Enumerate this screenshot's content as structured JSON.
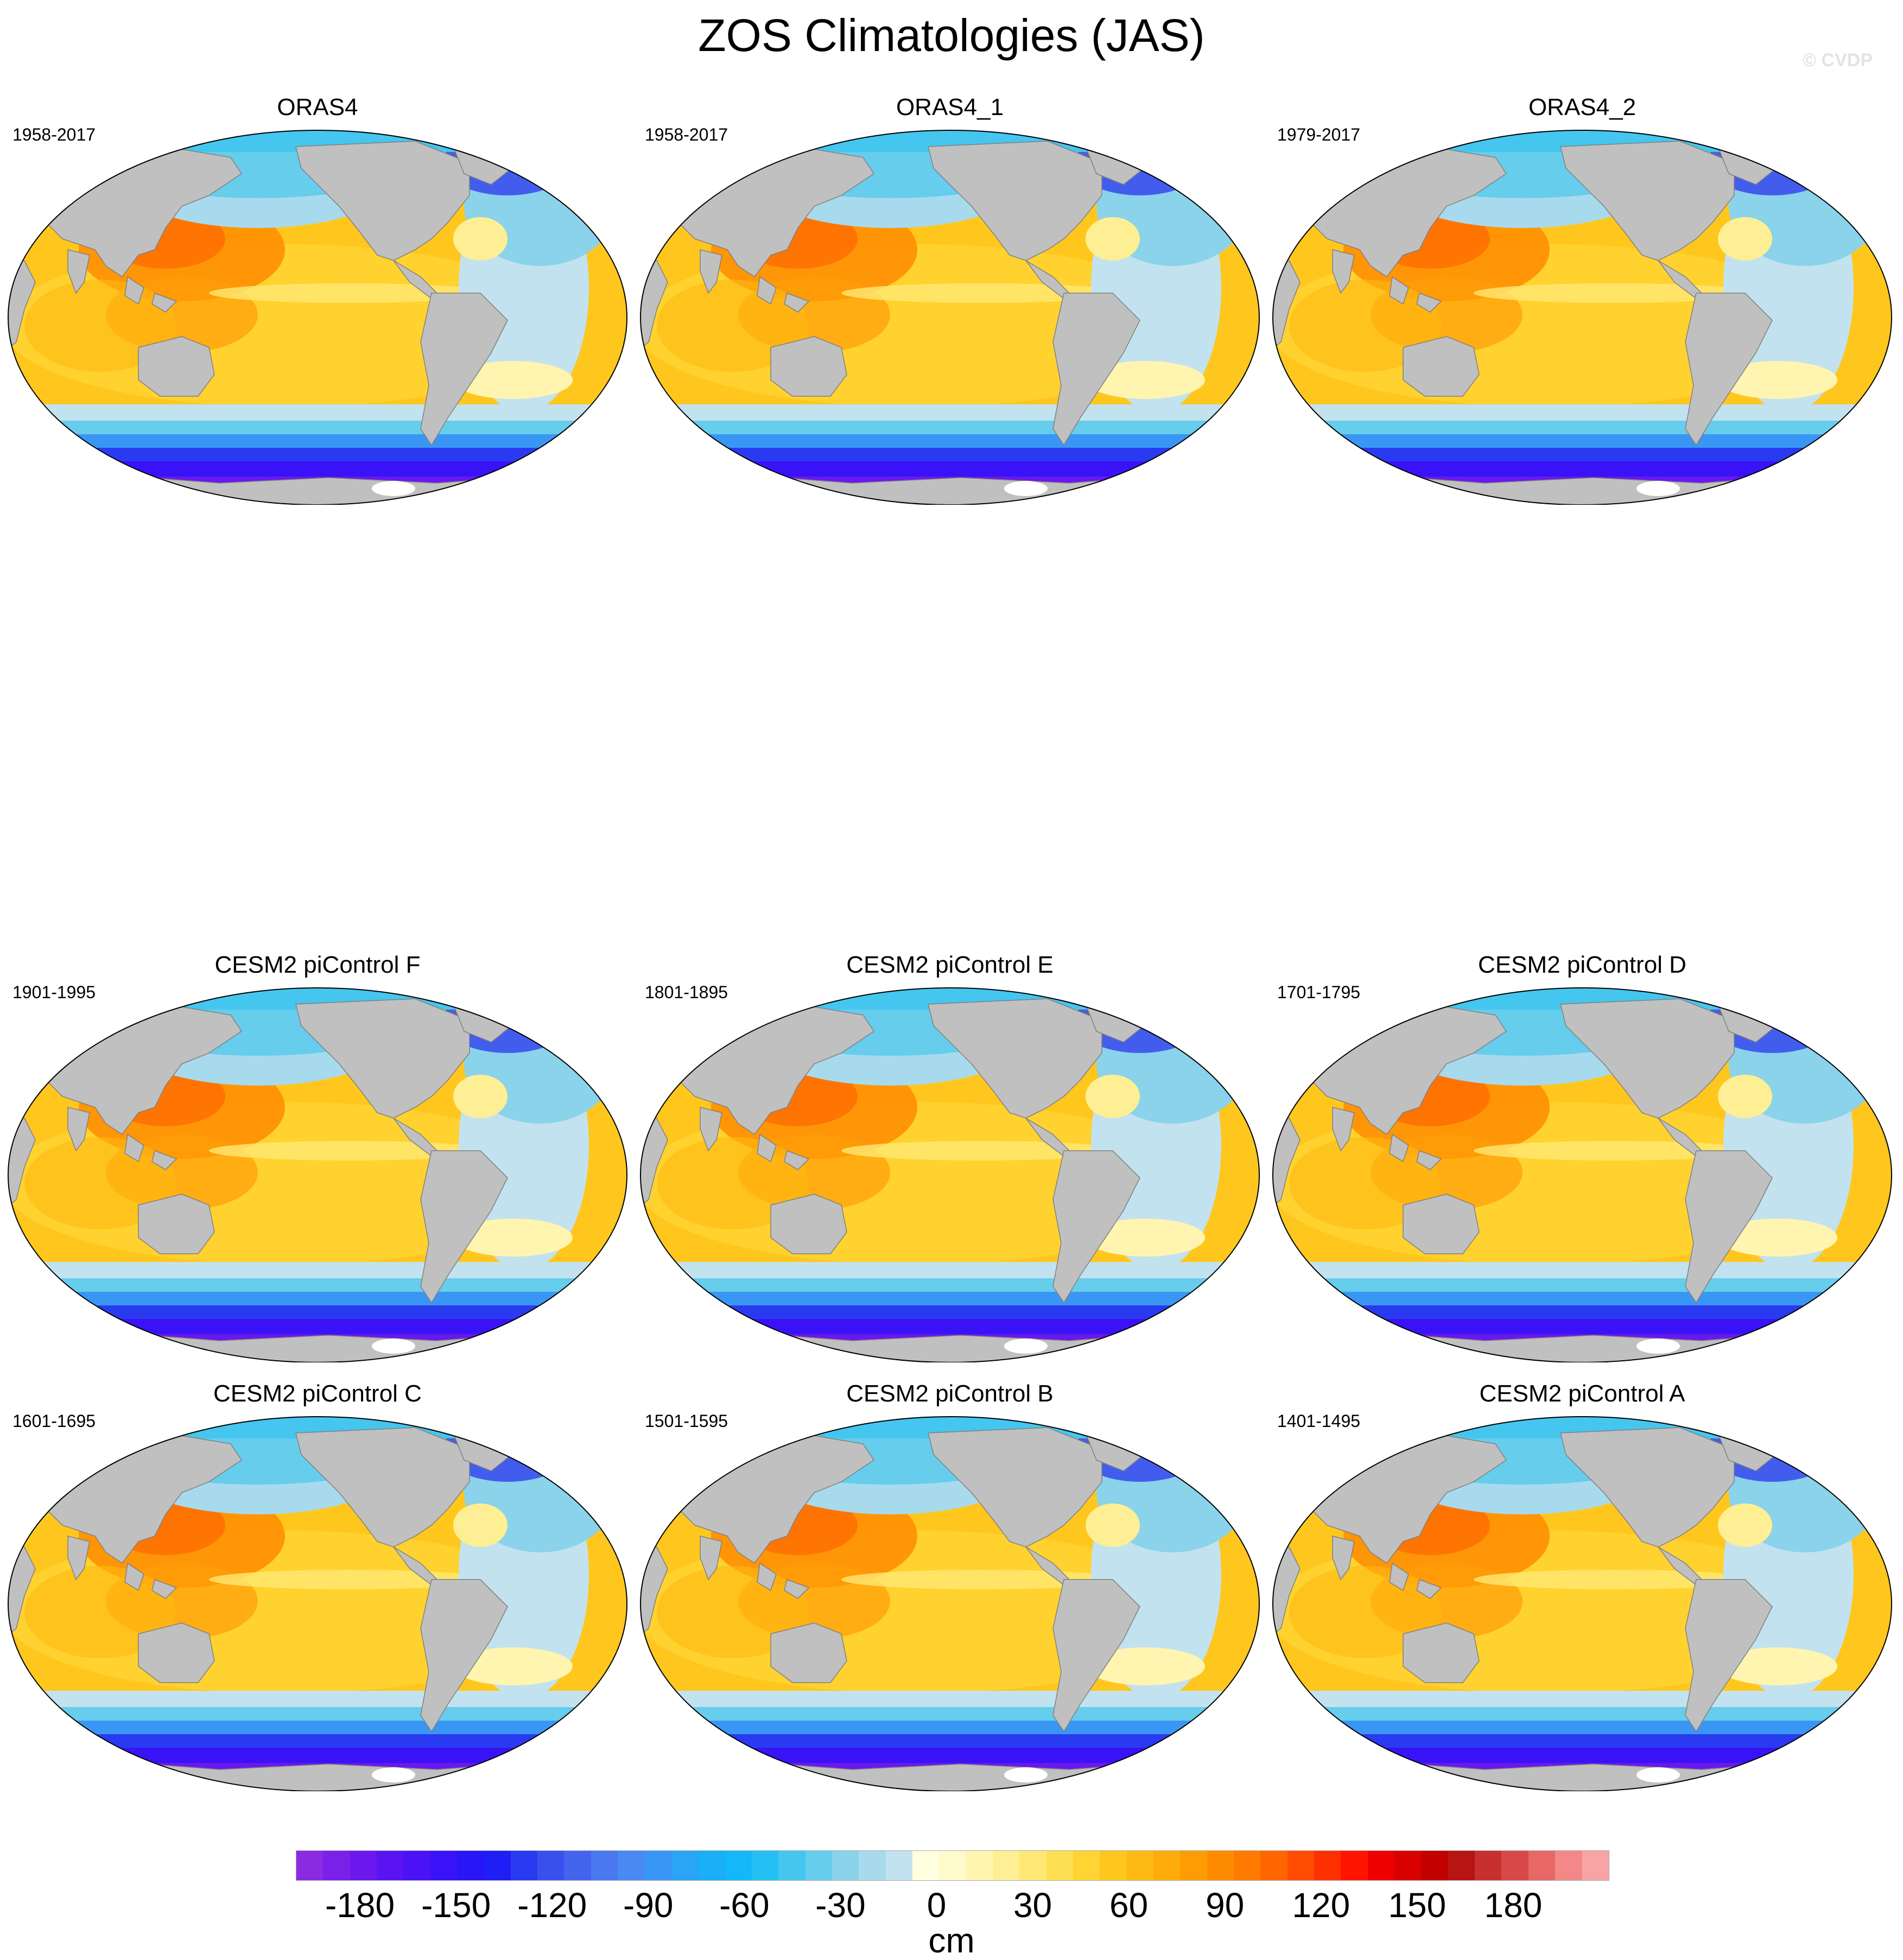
{
  "title": "ZOS Climatologies (JAS)",
  "watermark": "© CVDP",
  "colors": {
    "land": "#c0c0c0",
    "ice": "#ffffff",
    "coast": "#808080"
  },
  "panels": [
    {
      "title": "ORAS4",
      "period": "1958-2017"
    },
    {
      "title": "ORAS4_1",
      "period": "1958-2017"
    },
    {
      "title": "ORAS4_2",
      "period": "1979-2017"
    },
    {
      "title": "CESM2 piControl F",
      "period": "1901-1995"
    },
    {
      "title": "CESM2 piControl E",
      "period": "1801-1895"
    },
    {
      "title": "CESM2 piControl D",
      "period": "1701-1795"
    },
    {
      "title": "CESM2 piControl C",
      "period": "1601-1695"
    },
    {
      "title": "CESM2 piControl B",
      "period": "1501-1595"
    },
    {
      "title": "CESM2 piControl A",
      "period": "1401-1495"
    }
  ],
  "colorbar": {
    "units": "cm",
    "tick_labels": [
      "-180",
      "-150",
      "-120",
      "-90",
      "-60",
      "-30",
      "0",
      "30",
      "60",
      "90",
      "120",
      "150",
      "180"
    ],
    "tick_values": [
      -180,
      -150,
      -120,
      -90,
      -60,
      -30,
      0,
      30,
      60,
      90,
      120,
      150,
      180
    ],
    "min": -200,
    "max": 210,
    "step": 10,
    "colors": [
      "#8a2be2",
      "#7b20e8",
      "#6a18ee",
      "#5a14f2",
      "#4a12f5",
      "#3a12f7",
      "#2a14f8",
      "#1e1ef5",
      "#2a3af0",
      "#3a50ee",
      "#4464ee",
      "#4a78f0",
      "#4a88f2",
      "#3a96f4",
      "#2aa4f6",
      "#1aaff8",
      "#14b8f8",
      "#24c0f4",
      "#44c6ef",
      "#66cdec",
      "#8ad3ea",
      "#a8daed",
      "#c2e2ef",
      "#ffffe0",
      "#fffacb",
      "#fff5b0",
      "#ffef94",
      "#ffe874",
      "#ffdf52",
      "#ffd433",
      "#ffc71e",
      "#ffb913",
      "#ffab0a",
      "#ff9c05",
      "#ff8c00",
      "#ff7a00",
      "#ff6600",
      "#ff4c00",
      "#ff3000",
      "#ff1400",
      "#ee0000",
      "#d90000",
      "#c20000",
      "#b81414",
      "#c83030",
      "#d84848",
      "#e86868",
      "#f48888",
      "#f8a4a4"
    ]
  }
}
